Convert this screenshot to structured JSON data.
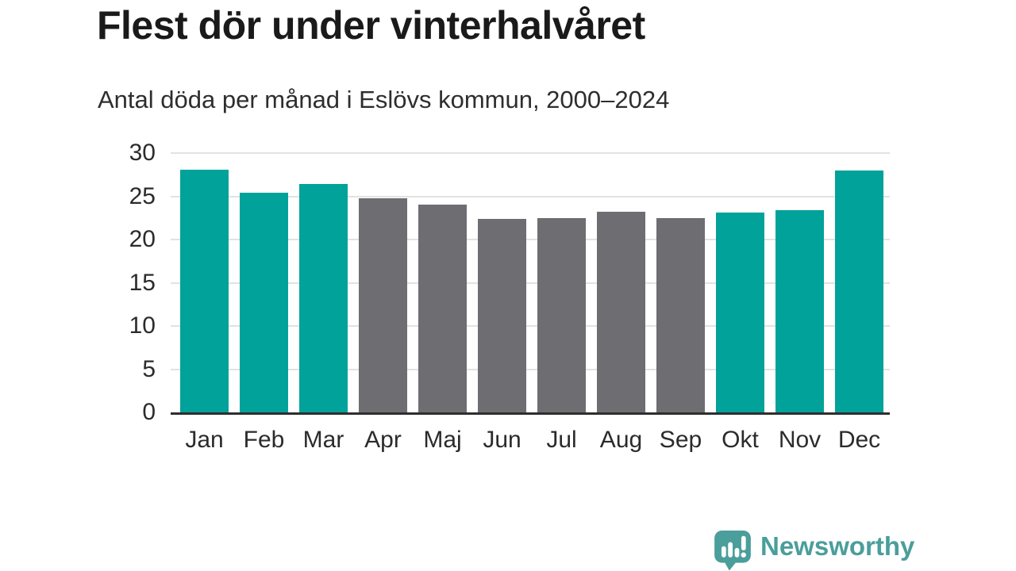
{
  "header": {
    "title": "Flest dör under vinterhalvåret",
    "subtitle": "Antal döda per månad i Eslövs kommun, 2000–2024"
  },
  "branding": {
    "logo_text": "Newsworthy",
    "logo_icon": "bar-chart-speech-bubble-icon",
    "logo_color": "#4a9e9b"
  },
  "chart_data": {
    "type": "bar",
    "title": "Flest dör under vinterhalvåret",
    "subtitle": "Antal döda per månad i Eslövs kommun, 2000–2024",
    "categories": [
      "Jan",
      "Feb",
      "Mar",
      "Apr",
      "Maj",
      "Jun",
      "Jul",
      "Aug",
      "Sep",
      "Okt",
      "Nov",
      "Dec"
    ],
    "values": [
      28.1,
      25.4,
      26.4,
      24.8,
      24.0,
      22.4,
      22.5,
      23.2,
      22.5,
      23.1,
      23.4,
      28.0
    ],
    "bar_colors": [
      "highlight",
      "highlight",
      "highlight",
      "muted",
      "muted",
      "muted",
      "muted",
      "muted",
      "muted",
      "highlight",
      "highlight",
      "highlight"
    ],
    "palette": {
      "highlight": "#00a29a",
      "muted": "#6e6d72"
    },
    "xlabel": "",
    "ylabel": "",
    "y_ticks": [
      0,
      5,
      10,
      15,
      20,
      25,
      30
    ],
    "ylim": [
      0,
      30
    ],
    "grid": "horizontal",
    "legend": "none",
    "axis_color": "#2e2e2e",
    "gridline_color": "#e2e2e2"
  }
}
